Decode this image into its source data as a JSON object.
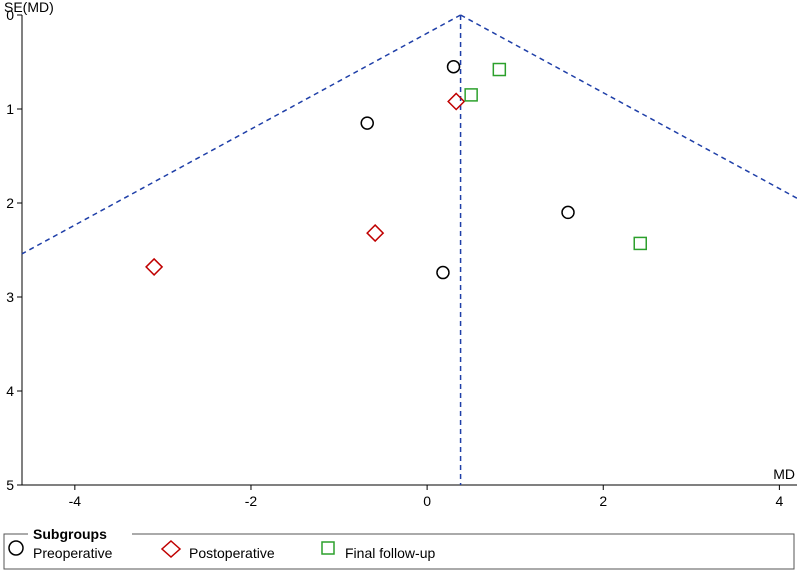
{
  "chart_data": {
    "type": "scatter",
    "subtype": "funnel plot",
    "xlabel": "MD",
    "ylabel": "SE(MD)",
    "xlim": [
      -4.6,
      4.2
    ],
    "ylim": [
      0,
      5
    ],
    "y_inverted": true,
    "x_ticks": [
      -4,
      -2,
      0,
      2,
      4
    ],
    "y_ticks": [
      0,
      1,
      2,
      3,
      4,
      5
    ],
    "pooled_estimate": 0.38,
    "funnel_multiplier": 1.96,
    "line_color": "#1f3fa8",
    "legend": {
      "title": "Subgroups",
      "position": "bottom"
    },
    "series": [
      {
        "name": "Preoperative",
        "marker": "circle",
        "color": "#000000",
        "points": [
          {
            "x": 0.3,
            "y": 0.55
          },
          {
            "x": -0.68,
            "y": 1.15
          },
          {
            "x": 1.6,
            "y": 2.1
          },
          {
            "x": 0.18,
            "y": 2.74
          }
        ]
      },
      {
        "name": "Postoperative",
        "marker": "diamond",
        "color": "#c00000",
        "points": [
          {
            "x": 0.33,
            "y": 0.92
          },
          {
            "x": -0.59,
            "y": 2.32
          },
          {
            "x": -3.1,
            "y": 2.68
          }
        ]
      },
      {
        "name": "Final follow-up",
        "marker": "square",
        "color": "#2ca02c",
        "points": [
          {
            "x": 0.82,
            "y": 0.58
          },
          {
            "x": 0.5,
            "y": 0.85
          },
          {
            "x": 2.42,
            "y": 2.43
          }
        ]
      }
    ]
  }
}
